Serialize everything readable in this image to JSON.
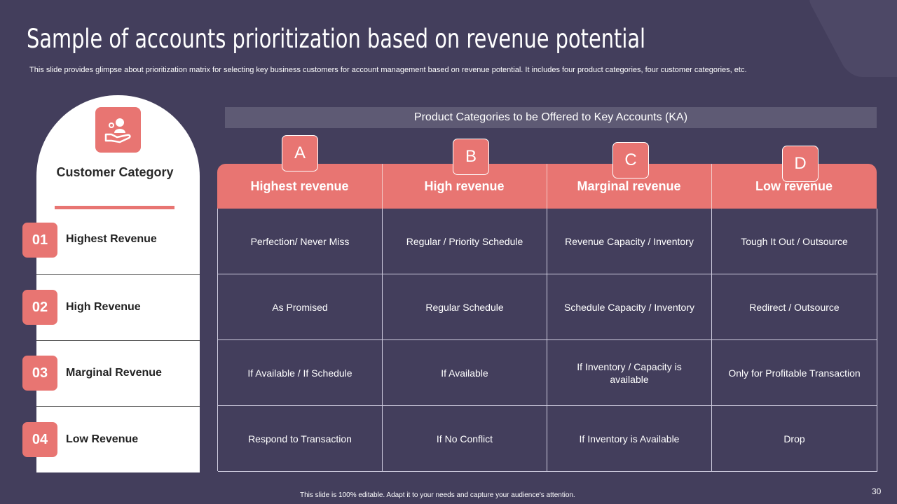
{
  "slide": {
    "title": "Sample of accounts prioritization based on revenue potential",
    "subtitle": "This slide provides glimpse about prioritization matrix for selecting key business customers for account management based on revenue potential. It includes four product categories, four customer categories, etc.",
    "footer": "This slide is 100% editable. Adapt it to your needs and capture your audience's attention.",
    "page_number": "30"
  },
  "left_panel": {
    "heading": "Customer Category",
    "icon": "hand-person-icon",
    "rows": [
      {
        "number": "01",
        "label": "Highest Revenue"
      },
      {
        "number": "02",
        "label": "High Revenue"
      },
      {
        "number": "03",
        "label": "Marginal Revenue"
      },
      {
        "number": "04",
        "label": "Low Revenue"
      }
    ]
  },
  "matrix": {
    "banner": "Product Categories to be Offered to Key Accounts (KA)",
    "columns": [
      {
        "letter": "A",
        "heading": "Highest revenue"
      },
      {
        "letter": "B",
        "heading": "High revenue"
      },
      {
        "letter": "C",
        "heading": "Marginal revenue"
      },
      {
        "letter": "D",
        "heading": "Low revenue"
      }
    ],
    "cells": [
      [
        "Perfection/ Never Miss",
        "Regular / Priority Schedule",
        "Revenue Capacity / Inventory",
        "Tough It Out / Outsource"
      ],
      [
        "As Promised",
        "Regular Schedule",
        "Schedule Capacity / Inventory",
        "Redirect / Outsource"
      ],
      [
        "If Available  / If Schedule",
        "If Available",
        "If Inventory  / Capacity is available",
        "Only for Profitable Transaction"
      ],
      [
        "Respond to Transaction",
        "If No Conflict",
        "If Inventory is Available",
        "Drop"
      ]
    ]
  },
  "colors": {
    "background": "#433e5c",
    "accent": "#e87572",
    "banner": "#5e5a74"
  }
}
